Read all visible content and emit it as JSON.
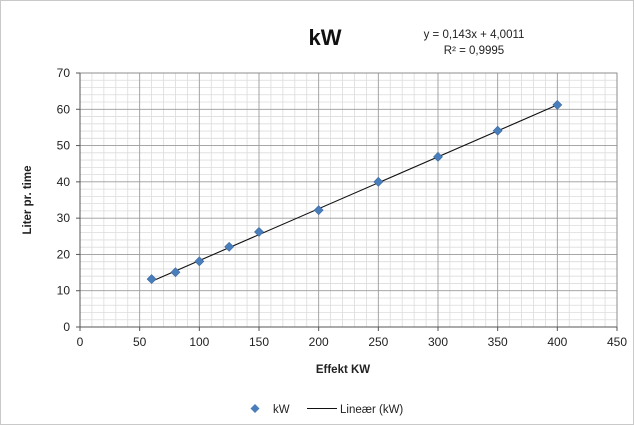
{
  "chart_data": {
    "type": "scatter",
    "title": "kW",
    "xlabel": "Effekt KW",
    "ylabel": "Liter pr. time",
    "xlim": [
      0,
      450
    ],
    "ylim": [
      0,
      70
    ],
    "x_ticks": [
      "0",
      "50",
      "100",
      "150",
      "200",
      "250",
      "300",
      "350",
      "400",
      "450"
    ],
    "y_ticks": [
      "0",
      "10",
      "20",
      "30",
      "40",
      "50",
      "60",
      "70"
    ],
    "grid": true,
    "legend_position": "bottom",
    "series": [
      {
        "name": "kW",
        "color": "#4a7ebb",
        "marker": "diamond",
        "points": [
          {
            "x": 60,
            "y": 13.2
          },
          {
            "x": 80,
            "y": 15.1
          },
          {
            "x": 100,
            "y": 18.1
          },
          {
            "x": 125,
            "y": 22.1
          },
          {
            "x": 150,
            "y": 26.2
          },
          {
            "x": 200,
            "y": 32.2
          },
          {
            "x": 250,
            "y": 40.0
          },
          {
            "x": 300,
            "y": 46.9
          },
          {
            "x": 350,
            "y": 54.1
          },
          {
            "x": 400,
            "y": 61.2
          }
        ]
      }
    ],
    "trendline": {
      "name": "Lineær (kW)",
      "slope": 0.143,
      "intercept": 4.0011,
      "x_range": [
        60,
        400
      ],
      "color": "#111111",
      "equation_label": "y = 0,143x + 4,0011",
      "r2_label": "R² = 0,9995"
    }
  }
}
